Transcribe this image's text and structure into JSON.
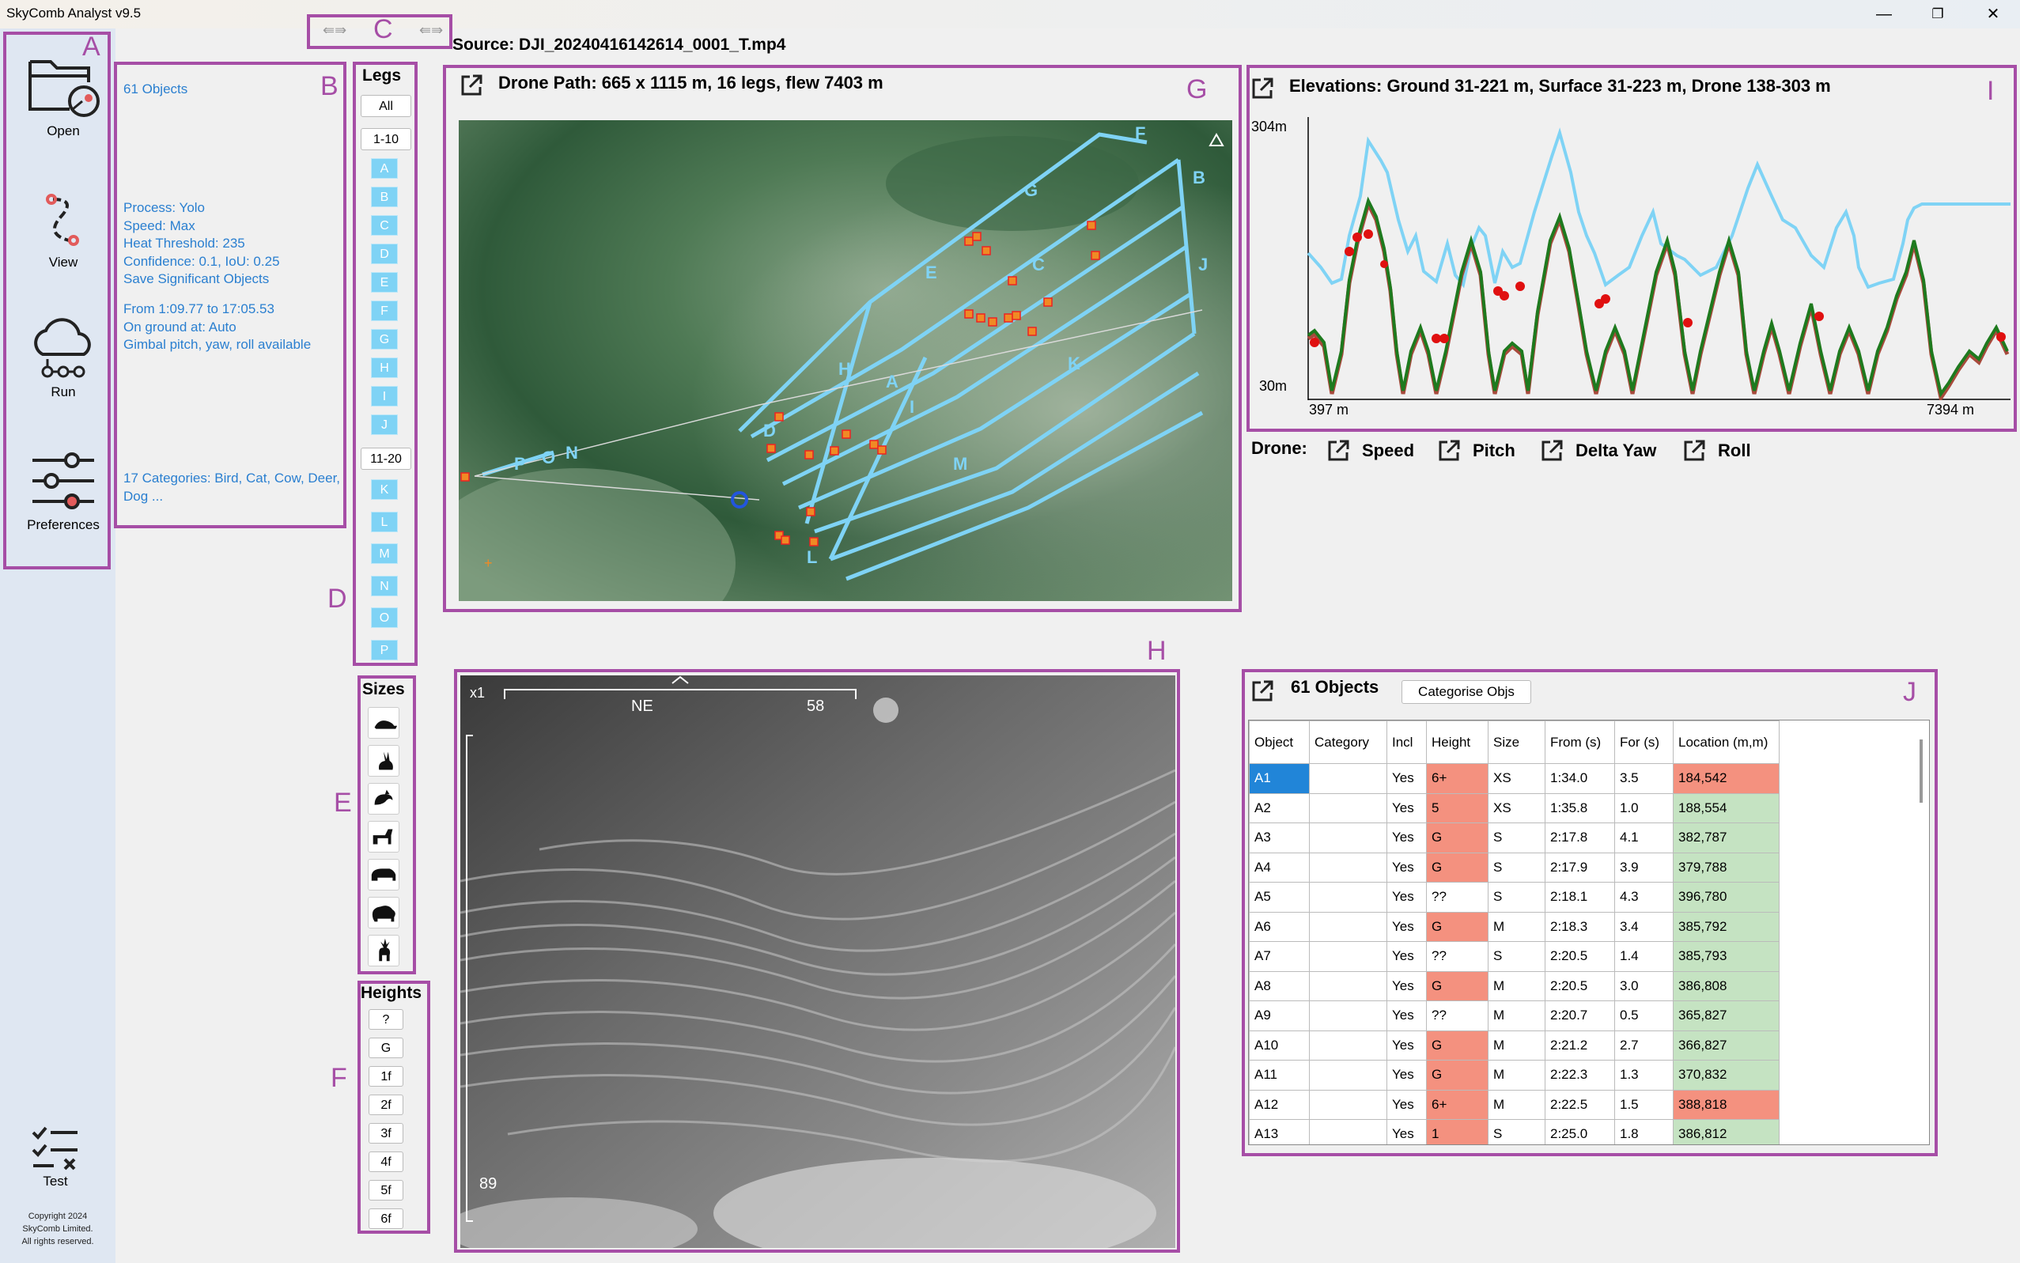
{
  "app": {
    "title": "SkyComb Analyst v9.5"
  },
  "window": {
    "minimize": "—",
    "restore": "❐",
    "close": "✕"
  },
  "nav": {
    "open": "Open",
    "view": "View",
    "run": "Run",
    "preferences": "Preferences",
    "test": "Test",
    "copyright": [
      "Copyright 2024",
      "SkyComb Limited.",
      "All rights reserved."
    ]
  },
  "section_tags": {
    "A": "A",
    "B": "B",
    "C": "C",
    "D": "D",
    "E": "E",
    "F": "F",
    "G": "G",
    "H": "H",
    "I": "I",
    "J": "J"
  },
  "source": "Source: DJI_20240416142614_0001_T.mp4",
  "info": {
    "objects": "61 Objects",
    "process": "Process: Yolo",
    "speed": "Speed: Max",
    "heat": "Heat Threshold: 235",
    "confidence": "Confidence: 0.1, IoU: 0.25",
    "save": "Save Significant Objects",
    "from": "From 1:09.77 to 17:05.53",
    "ground": "On ground at: Auto",
    "gimbal": "Gimbal pitch, yaw, roll available",
    "categories": "17 Categories: Bird, Cat, Cow, Deer, Dog ..."
  },
  "legs": {
    "heading": "Legs",
    "all": "All",
    "range1": "1-10",
    "range2": "11-20",
    "group1": [
      "A",
      "B",
      "C",
      "D",
      "E",
      "F",
      "G",
      "H",
      "I",
      "J"
    ],
    "group2": [
      "K",
      "L",
      "M",
      "N",
      "O",
      "P"
    ]
  },
  "sizes": {
    "heading": "Sizes",
    "icons": [
      "mouse-icon",
      "rabbit-icon",
      "cat-icon",
      "dog-icon",
      "pig-icon",
      "sheep-icon",
      "deer-icon"
    ]
  },
  "heights": {
    "heading": "Heights",
    "items": [
      "?",
      "G",
      "1f",
      "2f",
      "3f",
      "4f",
      "5f",
      "6f"
    ]
  },
  "drone_path": {
    "title": "Drone Path: 665 x 1115 m, 16 legs, flew 7403 m",
    "leg_labels": [
      "F",
      "G",
      "B",
      "E",
      "C",
      "A",
      "H",
      "I",
      "K",
      "D",
      "M",
      "P",
      "O",
      "N",
      "J",
      "L"
    ]
  },
  "elevations": {
    "title": "Elevations: Ground 31-221 m, Surface 31-223 m, Drone 138-303 m",
    "y_top": "304m",
    "y_bottom": "30m",
    "x_left": "397 m",
    "x_right": "7394 m"
  },
  "drone_charts": {
    "label": "Drone:",
    "items": [
      "Speed",
      "Pitch",
      "Delta Yaw",
      "Roll"
    ]
  },
  "video": {
    "zoom": "x1",
    "heading": "NE",
    "heading_value": "58",
    "pitch": "89"
  },
  "objects_panel": {
    "title": "61 Objects",
    "categorise": "Categorise Objs",
    "columns": [
      "Object",
      "Category",
      "Incl",
      "Height",
      "Size",
      "From (s)",
      "For (s)",
      "Location (m,m)"
    ],
    "rows": [
      [
        "A1",
        "",
        "Yes",
        "6+",
        "XS",
        "1:34.0",
        "3.5",
        "184,542"
      ],
      [
        "A2",
        "",
        "Yes",
        "5",
        "XS",
        "1:35.8",
        "1.0",
        "188,554"
      ],
      [
        "A3",
        "",
        "Yes",
        "G",
        "S",
        "2:17.8",
        "4.1",
        "382,787"
      ],
      [
        "A4",
        "",
        "Yes",
        "G",
        "S",
        "2:17.9",
        "3.9",
        "379,788"
      ],
      [
        "A5",
        "",
        "Yes",
        "??",
        "S",
        "2:18.1",
        "4.3",
        "396,780"
      ],
      [
        "A6",
        "",
        "Yes",
        "G",
        "M",
        "2:18.3",
        "3.4",
        "385,792"
      ],
      [
        "A7",
        "",
        "Yes",
        "??",
        "S",
        "2:20.5",
        "1.4",
        "385,793"
      ],
      [
        "A8",
        "",
        "Yes",
        "G",
        "M",
        "2:20.5",
        "3.0",
        "386,808"
      ],
      [
        "A9",
        "",
        "Yes",
        "??",
        "M",
        "2:20.7",
        "0.5",
        "365,827"
      ],
      [
        "A10",
        "",
        "Yes",
        "G",
        "M",
        "2:21.2",
        "2.7",
        "366,827"
      ],
      [
        "A11",
        "",
        "Yes",
        "G",
        "M",
        "2:22.3",
        "1.3",
        "370,832"
      ],
      [
        "A12",
        "",
        "Yes",
        "6+",
        "M",
        "2:22.5",
        "1.5",
        "388,818"
      ],
      [
        "A13",
        "",
        "Yes",
        "1",
        "S",
        "2:25.0",
        "1.8",
        "386,812"
      ]
    ],
    "height_red": [
      true,
      true,
      true,
      true,
      false,
      true,
      false,
      true,
      false,
      true,
      true,
      true,
      true
    ],
    "location_red": [
      true,
      false,
      false,
      false,
      false,
      false,
      false,
      false,
      false,
      false,
      false,
      true,
      false
    ]
  },
  "colors": {
    "accent_box": "#a64ea6",
    "info_text": "#2a7fd0",
    "leg_button": "#7fd3f5",
    "flight_path": "#7fd3f5",
    "surface_line": "#a84a3c",
    "ground_line": "#1e7a1e",
    "drone_line": "#7fd3f5"
  }
}
